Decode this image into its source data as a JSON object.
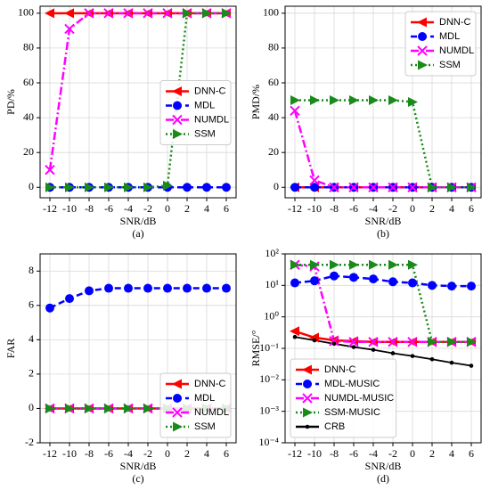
{
  "chart_data": [
    {
      "type": "line",
      "ylabel": "PD/%",
      "xlabel": "SNR/dB",
      "caption": "(a)",
      "x": [
        -12,
        -10,
        -8,
        -6,
        -4,
        -2,
        0,
        2,
        4,
        6
      ],
      "xlim": [
        -13,
        7
      ],
      "xticks": [
        -12,
        -10,
        -8,
        -6,
        -4,
        -2,
        0,
        2,
        4,
        6
      ],
      "ylim": [
        -6,
        104
      ],
      "yticks": [
        0,
        20,
        40,
        60,
        80,
        100
      ],
      "grid": true,
      "legend": "center right",
      "series": [
        {
          "name": "DNN-C",
          "color": "#ff0000",
          "marker": "triangle-left",
          "dash": "solid",
          "values": [
            100,
            100,
            100,
            100,
            100,
            100,
            100,
            100,
            100,
            100
          ]
        },
        {
          "name": "MDL",
          "color": "#0000ff",
          "marker": "circle",
          "dash": "dashed",
          "values": [
            0,
            0,
            0,
            0,
            0,
            0,
            0,
            0,
            0,
            0
          ]
        },
        {
          "name": "NUMDL",
          "color": "#ff00ff",
          "marker": "x",
          "dash": "dashdot",
          "values": [
            10,
            91,
            100,
            100,
            100,
            100,
            100,
            100,
            100,
            100
          ]
        },
        {
          "name": "SSM",
          "color": "#1a8a1a",
          "marker": "triangle-right",
          "dash": "dotted",
          "values": [
            0,
            0,
            0,
            0,
            0,
            0,
            1,
            100,
            100,
            100
          ]
        }
      ]
    },
    {
      "type": "line",
      "ylabel": "PMD/%",
      "xlabel": "SNR/dB",
      "caption": "(b)",
      "x": [
        -12,
        -10,
        -8,
        -6,
        -4,
        -2,
        0,
        2,
        4,
        6
      ],
      "xlim": [
        -13,
        7
      ],
      "xticks": [
        -12,
        -10,
        -8,
        -6,
        -4,
        -2,
        0,
        2,
        4,
        6
      ],
      "ylim": [
        -6,
        104
      ],
      "yticks": [
        0,
        20,
        40,
        60,
        80,
        100
      ],
      "grid": true,
      "legend": "upper right",
      "series": [
        {
          "name": "DNN-C",
          "color": "#ff0000",
          "marker": "triangle-left",
          "dash": "solid",
          "values": [
            0,
            0,
            0,
            0,
            0,
            0,
            0,
            0,
            0,
            0
          ]
        },
        {
          "name": "MDL",
          "color": "#0000ff",
          "marker": "circle",
          "dash": "dashed",
          "values": [
            0,
            0,
            0,
            0,
            0,
            0,
            0,
            0,
            0,
            0
          ]
        },
        {
          "name": "NUMDL",
          "color": "#ff00ff",
          "marker": "x",
          "dash": "dashdot",
          "values": [
            44,
            4,
            0,
            0,
            0,
            0,
            0,
            0,
            0,
            0
          ]
        },
        {
          "name": "SSM",
          "color": "#1a8a1a",
          "marker": "triangle-right",
          "dash": "dotted",
          "values": [
            50,
            50,
            50,
            50,
            50,
            50,
            49,
            0,
            0,
            0
          ]
        }
      ]
    },
    {
      "type": "line",
      "ylabel": "FAR",
      "xlabel": "SNR/dB",
      "caption": "(c)",
      "x": [
        -12,
        -10,
        -8,
        -6,
        -4,
        -2,
        0,
        2,
        4,
        6
      ],
      "xlim": [
        -13,
        7
      ],
      "xticks": [
        -12,
        -10,
        -8,
        -6,
        -4,
        -2,
        0,
        2,
        4,
        6
      ],
      "ylim": [
        -2,
        9
      ],
      "yticks": [
        -2,
        0,
        2,
        4,
        6,
        8
      ],
      "grid": true,
      "legend": "lower right",
      "series": [
        {
          "name": "DNN-C",
          "color": "#ff0000",
          "marker": "triangle-left",
          "dash": "solid",
          "values": [
            0,
            0,
            0,
            0,
            0,
            0,
            0,
            0,
            0,
            0
          ]
        },
        {
          "name": "MDL",
          "color": "#0000ff",
          "marker": "circle",
          "dash": "dashed",
          "values": [
            5.85,
            6.4,
            6.85,
            7.0,
            7.0,
            7.0,
            7.0,
            7.0,
            7.0,
            7.0
          ]
        },
        {
          "name": "NUMDL",
          "color": "#ff00ff",
          "marker": "x",
          "dash": "dashdot",
          "values": [
            0,
            0,
            0,
            0,
            0,
            0,
            0,
            0,
            0,
            0
          ]
        },
        {
          "name": "SSM",
          "color": "#1a8a1a",
          "marker": "triangle-right",
          "dash": "dotted",
          "values": [
            0,
            0,
            0,
            0,
            0,
            0,
            0,
            0,
            0,
            0
          ]
        }
      ]
    },
    {
      "type": "line",
      "ylabel": "RMSE/°",
      "xlabel": "SNR/dB",
      "caption": "(d)",
      "log_y": true,
      "x": [
        -12,
        -10,
        -8,
        -6,
        -4,
        -2,
        0,
        2,
        4,
        6
      ],
      "xlim": [
        -13,
        7
      ],
      "xticks": [
        -12,
        -10,
        -8,
        -6,
        -4,
        -2,
        0,
        2,
        4,
        6
      ],
      "ylim": [
        0.0001,
        100
      ],
      "yticks": [
        {
          "value": 0.0001,
          "label": "10⁻⁴"
        },
        {
          "value": 0.001,
          "label": "10⁻³"
        },
        {
          "value": 0.01,
          "label": "10⁻²"
        },
        {
          "value": 0.1,
          "label": "10⁻¹"
        },
        {
          "value": 1,
          "label": "10⁰"
        },
        {
          "value": 10,
          "label": "10¹"
        },
        {
          "value": 100,
          "label": "10²"
        }
      ],
      "grid": true,
      "legend": "lower left",
      "series": [
        {
          "name": "DNN-C",
          "color": "#ff0000",
          "marker": "triangle-left",
          "dash": "solid",
          "values": [
            0.35,
            0.22,
            0.18,
            0.17,
            0.16,
            0.16,
            0.16,
            0.16,
            0.16,
            0.16
          ]
        },
        {
          "name": "MDL-MUSIC",
          "color": "#0000ff",
          "marker": "circle",
          "dash": "dashed",
          "values": [
            12,
            14,
            20,
            18,
            16,
            13,
            12,
            10,
            9.5,
            9.5
          ]
        },
        {
          "name": "NUMDL-MUSIC",
          "color": "#ff00ff",
          "marker": "x",
          "dash": "dashdot",
          "values": [
            45,
            40,
            0.17,
            0.16,
            0.16,
            0.16,
            0.16,
            0.16,
            0.16,
            0.16
          ]
        },
        {
          "name": "SSM-MUSIC",
          "color": "#1a8a1a",
          "marker": "triangle-right",
          "dash": "dotted",
          "values": [
            45,
            45,
            45,
            45,
            45,
            45,
            45,
            0.16,
            0.16,
            0.16
          ]
        },
        {
          "name": "CRB",
          "color": "#000000",
          "marker": "dot",
          "dash": "solid",
          "values": [
            0.23,
            0.18,
            0.14,
            0.11,
            0.09,
            0.07,
            0.057,
            0.045,
            0.035,
            0.028
          ]
        }
      ]
    }
  ]
}
